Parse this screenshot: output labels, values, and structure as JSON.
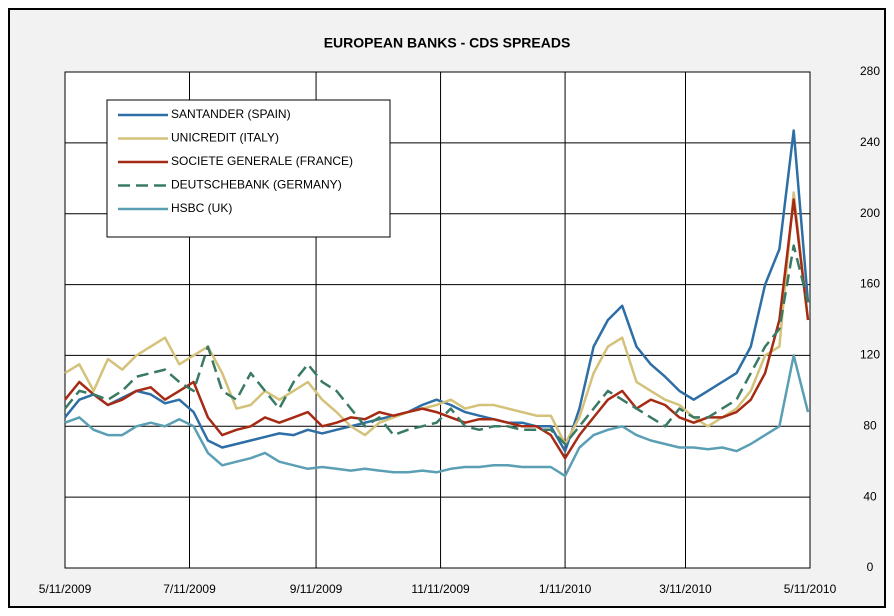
{
  "chart_data": {
    "type": "line",
    "title": "EUROPEAN BANKS - CDS SPREADS",
    "x": [
      "5/11/2009",
      "5/18/2009",
      "5/25/2009",
      "6/1/2009",
      "6/8/2009",
      "6/15/2009",
      "6/22/2009",
      "6/29/2009",
      "7/6/2009",
      "7/13/2009",
      "7/20/2009",
      "7/27/2009",
      "8/3/2009",
      "8/10/2009",
      "8/17/2009",
      "8/24/2009",
      "8/31/2009",
      "9/7/2009",
      "9/14/2009",
      "9/21/2009",
      "9/28/2009",
      "10/5/2009",
      "10/12/2009",
      "10/19/2009",
      "10/26/2009",
      "11/2/2009",
      "11/9/2009",
      "11/16/2009",
      "11/23/2009",
      "11/30/2009",
      "12/7/2009",
      "12/14/2009",
      "12/21/2009",
      "12/28/2009",
      "1/4/2010",
      "1/11/2010",
      "1/18/2010",
      "1/25/2010",
      "2/1/2010",
      "2/8/2010",
      "2/15/2010",
      "2/22/2010",
      "3/1/2010",
      "3/8/2010",
      "3/15/2010",
      "3/22/2010",
      "3/29/2010",
      "4/5/2010",
      "4/12/2010",
      "4/19/2010",
      "4/26/2010",
      "5/3/2010",
      "5/10/2010"
    ],
    "series": [
      {
        "name": "SANTANDER (SPAIN)",
        "color": "#2e6ea6",
        "dash": false,
        "values": [
          85,
          95,
          98,
          92,
          96,
          100,
          98,
          93,
          95,
          88,
          72,
          68,
          70,
          72,
          74,
          76,
          75,
          78,
          76,
          78,
          80,
          82,
          84,
          86,
          88,
          92,
          95,
          92,
          88,
          86,
          84,
          82,
          82,
          80,
          80,
          66,
          90,
          125,
          140,
          148,
          125,
          115,
          108,
          100,
          95,
          100,
          105,
          110,
          125,
          160,
          180,
          247,
          150
        ]
      },
      {
        "name": "UNICREDIT (ITALY)",
        "color": "#d4c27a",
        "dash": false,
        "values": [
          110,
          115,
          100,
          118,
          112,
          120,
          125,
          130,
          115,
          120,
          125,
          110,
          90,
          92,
          100,
          95,
          100,
          105,
          95,
          88,
          80,
          75,
          82,
          85,
          88,
          90,
          92,
          95,
          90,
          92,
          92,
          90,
          88,
          86,
          86,
          70,
          85,
          110,
          125,
          130,
          105,
          100,
          95,
          92,
          85,
          80,
          85,
          90,
          100,
          120,
          125,
          212,
          140
        ]
      },
      {
        "name": "SOCIETE GENERALE (FRANCE)",
        "color": "#a62b14",
        "dash": false,
        "values": [
          95,
          105,
          98,
          92,
          95,
          100,
          102,
          95,
          100,
          105,
          85,
          75,
          78,
          80,
          85,
          82,
          85,
          88,
          80,
          82,
          85,
          84,
          88,
          86,
          88,
          90,
          88,
          85,
          82,
          84,
          84,
          82,
          80,
          80,
          75,
          62,
          75,
          85,
          95,
          100,
          90,
          95,
          92,
          85,
          82,
          85,
          85,
          88,
          95,
          110,
          140,
          208,
          140
        ]
      },
      {
        "name": "DEUTSCHEBANK (GERMANY)",
        "color": "#3a7a64",
        "dash": true,
        "values": [
          90,
          100,
          98,
          95,
          100,
          108,
          110,
          112,
          105,
          100,
          125,
          100,
          95,
          110,
          100,
          90,
          105,
          115,
          105,
          100,
          90,
          80,
          85,
          75,
          78,
          80,
          82,
          90,
          80,
          78,
          80,
          80,
          78,
          78,
          78,
          70,
          80,
          90,
          100,
          95,
          90,
          85,
          80,
          90,
          85,
          85,
          90,
          95,
          110,
          125,
          135,
          182,
          150
        ]
      },
      {
        "name": "HSBC (UK)",
        "color": "#5b9fb4",
        "dash": false,
        "values": [
          82,
          85,
          78,
          75,
          75,
          80,
          82,
          80,
          84,
          80,
          65,
          58,
          60,
          62,
          65,
          60,
          58,
          56,
          57,
          56,
          55,
          56,
          55,
          54,
          54,
          55,
          54,
          56,
          57,
          57,
          58,
          58,
          57,
          57,
          57,
          52,
          68,
          75,
          78,
          80,
          75,
          72,
          70,
          68,
          68,
          67,
          68,
          66,
          70,
          75,
          80,
          120,
          88
        ]
      }
    ],
    "xlim": [
      "5/11/2009",
      "5/11/2010"
    ],
    "xticks": [
      "5/11/2009",
      "7/11/2009",
      "9/11/2009",
      "11/11/2009",
      "1/11/2010",
      "3/11/2010",
      "5/11/2010"
    ],
    "ylim": [
      0,
      280
    ],
    "yticks": [
      0,
      40,
      80,
      120,
      160,
      200,
      240,
      280
    ],
    "grid": true,
    "legend": "upper left"
  }
}
